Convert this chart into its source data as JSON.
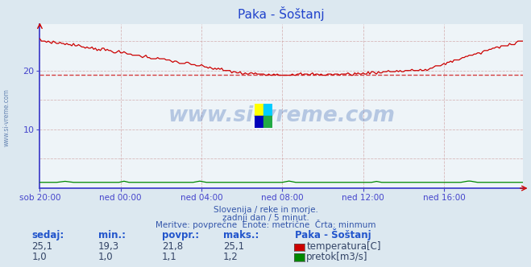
{
  "title": "Paka - Šoštanj",
  "background_color": "#dce8f0",
  "plot_bg_color": "#eef4f8",
  "xlim_left": 0,
  "xlim_right": 287,
  "ylim_bottom": 0,
  "ylim_top": 27.9,
  "ytick_positions": [
    10,
    20
  ],
  "ytick_labels": [
    "10",
    "20"
  ],
  "x_tick_positions": [
    0,
    48,
    96,
    144,
    192,
    240
  ],
  "x_tick_labels": [
    "sob 20:00",
    "ned 00:00",
    "ned 04:00",
    "ned 08:00",
    "ned 12:00",
    "ned 16:00"
  ],
  "temp_color": "#cc0000",
  "flow_color": "#008800",
  "dashed_line_value": 19.3,
  "temp_min": 19.3,
  "temp_max": 25.1,
  "temp_current": 25.1,
  "temp_avg": 21.8,
  "flow_min": 1.0,
  "flow_max": 1.2,
  "flow_current": 1.0,
  "flow_avg": 1.1,
  "subtitle1": "Slovenija / reke in morje.",
  "subtitle2": "zadnji dan / 5 minut.",
  "subtitle3": "Meritve: povprečne  Enote: metrične  Črta: minmum",
  "legend_title": "Paka - Šoštanj",
  "label_temp": "temperatura[C]",
  "label_flow": "pretok[m3/s]",
  "col_sedaj": "sedaj:",
  "col_min": "min.:",
  "col_povpr": "povpr.:",
  "col_maks": "maks.:",
  "watermark": "www.si-vreme.com",
  "left_label": "www.si-vreme.com",
  "axis_color": "#4444cc",
  "text_color": "#3355aa",
  "grid_color": "#cc9999",
  "table_header_color": "#2255cc",
  "table_val_color": "#334466"
}
